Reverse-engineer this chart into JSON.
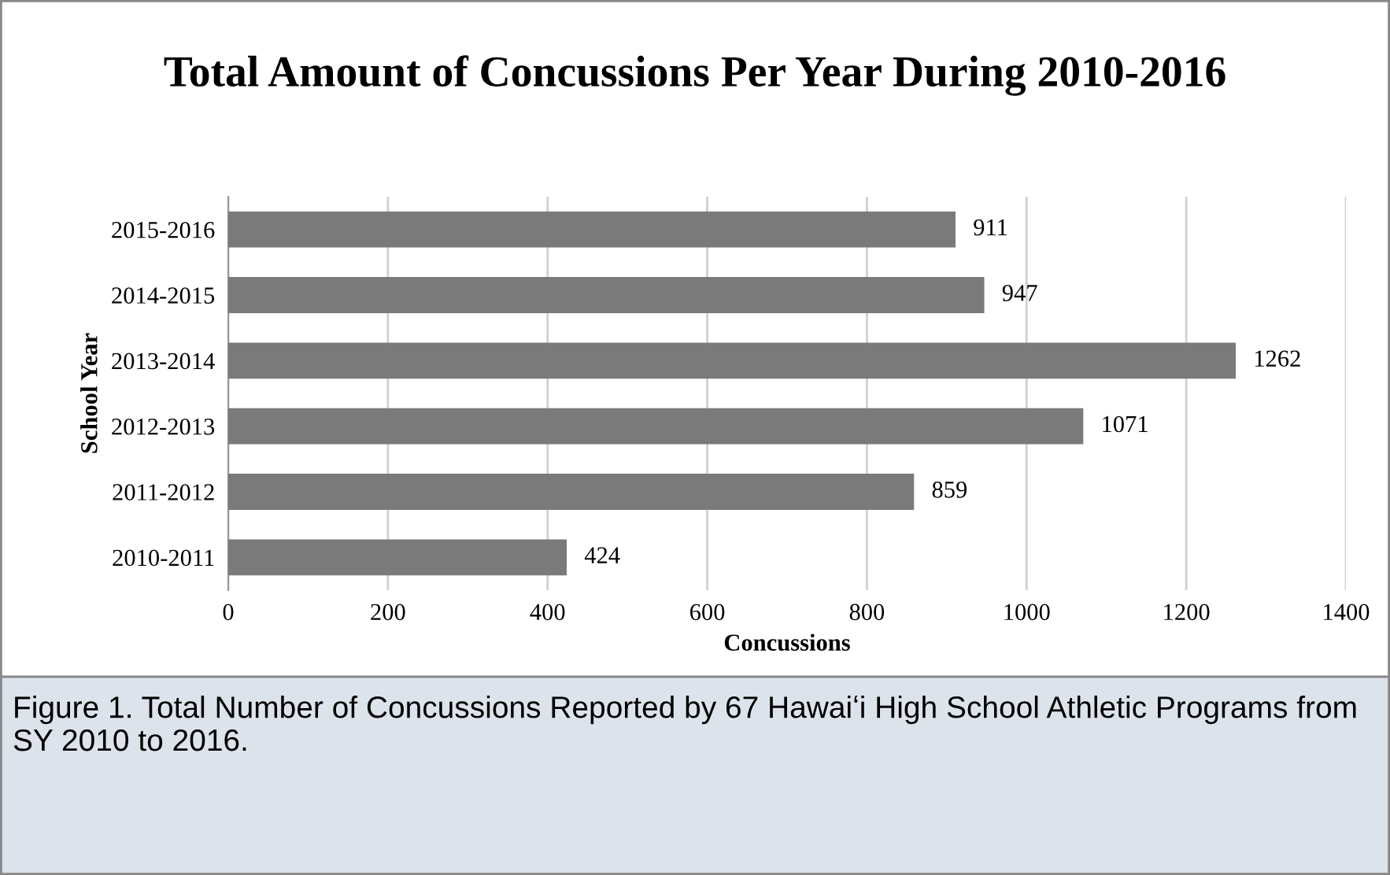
{
  "chart_data": {
    "type": "bar",
    "orientation": "horizontal",
    "title": "Total Amount of Concussions Per Year During 2010-2016",
    "xlabel": "Concussions",
    "ylabel": "School Year",
    "categories": [
      "2015-2016",
      "2014-2015",
      "2013-2014",
      "2012-2013",
      "2011-2012",
      "2010-2011"
    ],
    "values": [
      911,
      947,
      1262,
      1071,
      859,
      424
    ],
    "color": "#7a7a7a",
    "data_labels": true,
    "xlim": [
      0,
      1400
    ],
    "xticks": [
      0,
      200,
      400,
      600,
      800,
      1000,
      1200,
      1400
    ],
    "grid": "x",
    "annotations": [
      "Figure 1. Total Number of Concussions Reported by 67 Hawaiʻi High School Athletic Programs from SY 2010 to 2016."
    ]
  }
}
